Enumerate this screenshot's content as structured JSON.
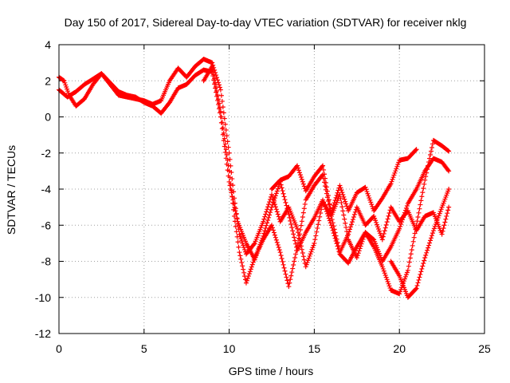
{
  "chart_data": {
    "type": "scatter",
    "title": "Day 150 of 2017, Sidereal Day-to-day VTEC variation (SDTVAR) for receiver nklg",
    "xlabel": "GPS time / hours",
    "ylabel": "SDTVAR / TECUs",
    "xlim": [
      0,
      25
    ],
    "ylim": [
      -12,
      4
    ],
    "xticks": [
      0,
      5,
      10,
      15,
      20,
      25
    ],
    "yticks": [
      -12,
      -10,
      -8,
      -6,
      -4,
      -2,
      0,
      2,
      4
    ],
    "grid": true,
    "legend": "none",
    "marker": "+",
    "color": "#ff0000",
    "series": [
      {
        "points": [
          [
            0.0,
            1.5
          ],
          [
            0.5,
            1.1
          ],
          [
            1.0,
            1.4
          ],
          [
            1.5,
            1.8
          ],
          [
            2.0,
            2.1
          ],
          [
            2.5,
            2.4
          ],
          [
            3.0,
            1.8
          ],
          [
            3.5,
            1.2
          ],
          [
            4.0,
            1.1
          ],
          [
            4.5,
            1.0
          ],
          [
            5.0,
            0.9
          ],
          [
            5.5,
            0.7
          ],
          [
            6.0,
            0.9
          ],
          [
            6.5,
            2.0
          ],
          [
            7.0,
            2.7
          ],
          [
            7.5,
            2.2
          ],
          [
            8.0,
            2.8
          ],
          [
            8.5,
            3.2
          ],
          [
            9.0,
            3.0
          ],
          [
            9.5,
            1.5
          ],
          [
            10.0,
            -2.0
          ],
          [
            10.3,
            -4.5
          ],
          [
            10.6,
            -6.5
          ],
          [
            11.0,
            -7.6
          ],
          [
            11.5,
            -7.0
          ],
          [
            12.0,
            -5.8
          ],
          [
            12.5,
            -4.3
          ],
          [
            13.0,
            -5.8
          ],
          [
            13.5,
            -5.0
          ],
          [
            14.0,
            -6.2
          ],
          [
            14.5,
            -8.3
          ],
          [
            15.0,
            -7.0
          ],
          [
            15.5,
            -4.7
          ],
          [
            16.0,
            -5.5
          ],
          [
            16.5,
            -7.5
          ],
          [
            17.0,
            -6.5
          ],
          [
            17.5,
            -5.0
          ],
          [
            18.0,
            -6.0
          ],
          [
            18.5,
            -5.5
          ],
          [
            19.0,
            -6.8
          ],
          [
            19.5,
            -5.0
          ],
          [
            20.0,
            -5.8
          ],
          [
            20.5,
            -5.2
          ],
          [
            21.0,
            -6.3
          ],
          [
            21.5,
            -5.5
          ],
          [
            22.0,
            -5.3
          ],
          [
            22.5,
            -6.5
          ],
          [
            22.9,
            -5.0
          ]
        ]
      },
      {
        "points": [
          [
            0.0,
            2.2
          ],
          [
            0.3,
            2.0
          ],
          [
            0.6,
            1.2
          ],
          [
            1.0,
            0.6
          ],
          [
            1.5,
            1.0
          ],
          [
            2.0,
            1.8
          ],
          [
            2.5,
            2.4
          ],
          [
            3.0,
            1.9
          ],
          [
            3.5,
            1.4
          ],
          [
            4.0,
            1.2
          ],
          [
            4.5,
            1.1
          ],
          [
            5.0,
            0.8
          ],
          [
            5.5,
            0.6
          ],
          [
            6.0,
            0.2
          ],
          [
            6.5,
            0.8
          ],
          [
            7.0,
            1.6
          ],
          [
            7.5,
            1.8
          ],
          [
            8.0,
            2.3
          ],
          [
            8.5,
            2.6
          ],
          [
            9.0,
            2.5
          ],
          [
            9.5,
            0.0
          ],
          [
            10.0,
            -3.6
          ],
          [
            10.5,
            -5.8
          ],
          [
            11.0,
            -7.0
          ],
          [
            11.5,
            -7.9
          ],
          [
            12.0,
            -6.6
          ],
          [
            12.5,
            -5.0
          ],
          [
            13.0,
            -3.6
          ],
          [
            13.5,
            -5.4
          ],
          [
            14.0,
            -7.4
          ],
          [
            14.5,
            -6.4
          ],
          [
            15.0,
            -5.6
          ],
          [
            15.5,
            -4.6
          ],
          [
            16.0,
            -6.0
          ],
          [
            16.5,
            -7.6
          ],
          [
            17.0,
            -8.1
          ],
          [
            17.5,
            -7.2
          ],
          [
            18.0,
            -6.4
          ],
          [
            18.5,
            -6.8
          ],
          [
            19.0,
            -8.0
          ],
          [
            19.5,
            -7.2
          ],
          [
            20.0,
            -6.2
          ],
          [
            20.5,
            -4.8
          ],
          [
            21.0,
            -4.0
          ],
          [
            21.5,
            -3.0
          ],
          [
            22.0,
            -2.3
          ],
          [
            22.5,
            -2.5
          ],
          [
            22.9,
            -3.0
          ]
        ]
      },
      {
        "points": [
          [
            8.5,
            2.0
          ],
          [
            9.0,
            2.8
          ],
          [
            9.5,
            0.3
          ],
          [
            10.0,
            -3.0
          ],
          [
            10.3,
            -5.5
          ],
          [
            10.6,
            -7.5
          ],
          [
            11.0,
            -9.2
          ],
          [
            11.5,
            -7.8
          ],
          [
            12.0,
            -6.8
          ],
          [
            12.5,
            -6.0
          ],
          [
            13.0,
            -7.5
          ],
          [
            13.5,
            -9.4
          ],
          [
            14.0,
            -7.2
          ],
          [
            14.5,
            -4.6
          ],
          [
            15.0,
            -3.8
          ],
          [
            15.5,
            -3.2
          ],
          [
            16.0,
            -5.5
          ],
          [
            16.5,
            -4.3
          ],
          [
            17.0,
            -6.8
          ],
          [
            17.5,
            -7.8
          ],
          [
            18.0,
            -6.4
          ],
          [
            18.5,
            -7.2
          ],
          [
            19.0,
            -8.3
          ],
          [
            19.5,
            -9.6
          ],
          [
            20.0,
            -9.8
          ],
          [
            20.5,
            -8.5
          ],
          [
            21.0,
            -6.0
          ],
          [
            21.5,
            -3.5
          ],
          [
            22.0,
            -1.3
          ],
          [
            22.5,
            -1.6
          ],
          [
            22.9,
            -1.9
          ]
        ]
      },
      {
        "points": [
          [
            12.5,
            -4.0
          ],
          [
            13.0,
            -3.5
          ],
          [
            13.5,
            -3.3
          ],
          [
            14.0,
            -2.7
          ],
          [
            14.5,
            -4.1
          ],
          [
            15.0,
            -3.3
          ],
          [
            15.5,
            -2.7
          ],
          [
            16.0,
            -5.3
          ],
          [
            16.5,
            -3.8
          ],
          [
            17.0,
            -5.2
          ],
          [
            17.5,
            -4.2
          ],
          [
            18.0,
            -3.9
          ],
          [
            18.5,
            -5.2
          ],
          [
            19.0,
            -4.5
          ],
          [
            19.5,
            -3.7
          ],
          [
            20.0,
            -2.4
          ],
          [
            20.5,
            -2.3
          ],
          [
            21.0,
            -1.8
          ]
        ]
      },
      {
        "points": [
          [
            19.5,
            -8.0
          ],
          [
            20.0,
            -8.8
          ],
          [
            20.5,
            -10.0
          ],
          [
            21.0,
            -9.5
          ],
          [
            21.5,
            -7.8
          ],
          [
            22.0,
            -6.3
          ],
          [
            22.5,
            -5.0
          ],
          [
            22.9,
            -4.0
          ]
        ]
      }
    ]
  }
}
